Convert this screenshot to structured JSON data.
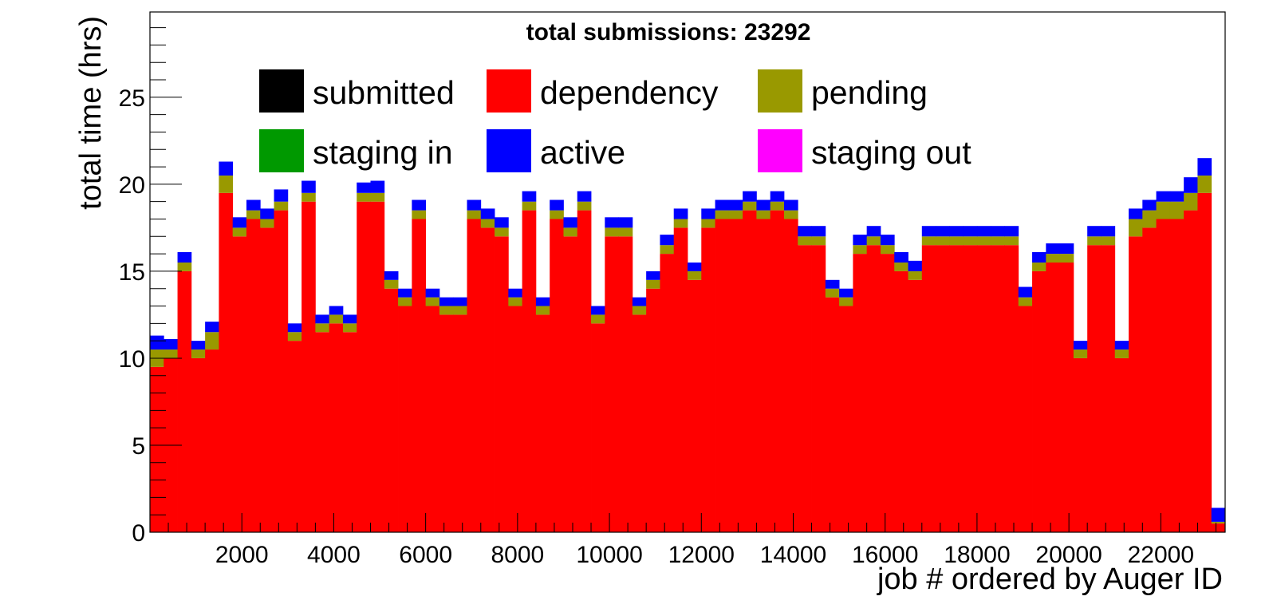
{
  "chart_data": {
    "type": "bar",
    "stacked": true,
    "title": "total submissions: 23292",
    "xlabel": "job # ordered by Auger ID",
    "ylabel": "total time (hrs)",
    "xlim": [
      0,
      23400
    ],
    "ylim": [
      0,
      29.9
    ],
    "x_ticks": [
      2000,
      4000,
      6000,
      8000,
      10000,
      12000,
      14000,
      16000,
      18000,
      20000,
      22000
    ],
    "y_ticks": [
      0,
      5,
      10,
      15,
      20,
      25
    ],
    "grid": false,
    "legend_position": "top-center",
    "legend": [
      {
        "name": "submitted",
        "color": "#000000"
      },
      {
        "name": "dependency",
        "color": "#ff0000"
      },
      {
        "name": "pending",
        "color": "#999900"
      },
      {
        "name": "staging in",
        "color": "#009900"
      },
      {
        "name": "active",
        "color": "#0000ff"
      },
      {
        "name": "staging out",
        "color": "#ff00ff"
      }
    ],
    "bin_width": 300,
    "x": [
      150,
      450,
      750,
      1050,
      1350,
      1650,
      1950,
      2250,
      2550,
      2850,
      3150,
      3450,
      3750,
      4050,
      4350,
      4650,
      4950,
      5250,
      5550,
      5850,
      6150,
      6450,
      6750,
      7050,
      7350,
      7650,
      7950,
      8250,
      8550,
      8850,
      9150,
      9450,
      9750,
      10050,
      10350,
      10650,
      10950,
      11250,
      11550,
      11850,
      12150,
      12450,
      12750,
      13050,
      13350,
      13650,
      13950,
      14250,
      14550,
      14850,
      15150,
      15450,
      15750,
      16050,
      16350,
      16650,
      16950,
      17250,
      17550,
      17850,
      18150,
      18450,
      18750,
      19050,
      19350,
      19650,
      19950,
      20250,
      20550,
      20850,
      21150,
      21450,
      21750,
      22050,
      22350,
      22650,
      22950,
      23250
    ],
    "series": [
      {
        "name": "dependency",
        "values": [
          9.5,
          10.0,
          15.0,
          10.0,
          10.5,
          19.5,
          17.0,
          18.0,
          17.5,
          18.5,
          11.0,
          19.0,
          11.5,
          12.0,
          11.5,
          19.0,
          19.0,
          14.0,
          13.0,
          18.0,
          13.0,
          12.5,
          12.5,
          18.0,
          17.5,
          17.0,
          13.0,
          18.5,
          12.5,
          18.0,
          17.0,
          18.5,
          12.0,
          17.0,
          17.0,
          12.5,
          14.0,
          16.0,
          17.5,
          14.5,
          17.5,
          18.0,
          18.0,
          18.5,
          18.0,
          18.5,
          18.0,
          16.5,
          16.5,
          13.5,
          13.0,
          16.0,
          16.5,
          16.0,
          15.0,
          14.5,
          16.5,
          16.5,
          16.5,
          16.5,
          16.5,
          16.5,
          16.5,
          13.0,
          15.0,
          15.5,
          15.5,
          10.0,
          16.5,
          16.5,
          10.0,
          17.0,
          17.5,
          18.0,
          18.0,
          18.5,
          19.5,
          0.5
        ]
      },
      {
        "name": "pending",
        "values": [
          1.0,
          0.5,
          0.5,
          0.5,
          1.0,
          1.0,
          0.5,
          0.5,
          0.5,
          0.5,
          0.5,
          0.5,
          0.5,
          0.5,
          0.5,
          0.5,
          0.5,
          0.5,
          0.5,
          0.5,
          0.5,
          0.5,
          0.5,
          0.5,
          0.5,
          0.5,
          0.5,
          0.5,
          0.5,
          0.5,
          0.5,
          0.5,
          0.5,
          0.5,
          0.5,
          0.5,
          0.5,
          0.5,
          0.5,
          0.5,
          0.5,
          0.5,
          0.5,
          0.5,
          0.5,
          0.5,
          0.5,
          0.5,
          0.5,
          0.5,
          0.5,
          0.5,
          0.5,
          0.5,
          0.5,
          0.5,
          0.5,
          0.5,
          0.5,
          0.5,
          0.5,
          0.5,
          0.5,
          0.5,
          0.5,
          0.5,
          0.5,
          0.5,
          0.5,
          0.5,
          0.5,
          1.0,
          1.0,
          1.0,
          1.0,
          1.0,
          1.0,
          0.1
        ]
      },
      {
        "name": "active",
        "values": [
          0.8,
          0.6,
          0.6,
          0.5,
          0.6,
          0.8,
          0.6,
          0.6,
          0.6,
          0.7,
          0.5,
          0.7,
          0.5,
          0.5,
          0.5,
          0.6,
          0.7,
          0.5,
          0.5,
          0.6,
          0.5,
          0.5,
          0.5,
          0.6,
          0.6,
          0.6,
          0.5,
          0.6,
          0.5,
          0.6,
          0.6,
          0.6,
          0.5,
          0.6,
          0.6,
          0.5,
          0.5,
          0.6,
          0.6,
          0.5,
          0.6,
          0.6,
          0.6,
          0.6,
          0.6,
          0.6,
          0.6,
          0.6,
          0.6,
          0.5,
          0.5,
          0.6,
          0.6,
          0.6,
          0.6,
          0.6,
          0.6,
          0.6,
          0.6,
          0.6,
          0.6,
          0.6,
          0.6,
          0.6,
          0.6,
          0.6,
          0.6,
          0.5,
          0.6,
          0.6,
          0.5,
          0.6,
          0.6,
          0.6,
          0.6,
          0.9,
          1.0,
          0.8
        ]
      }
    ]
  }
}
